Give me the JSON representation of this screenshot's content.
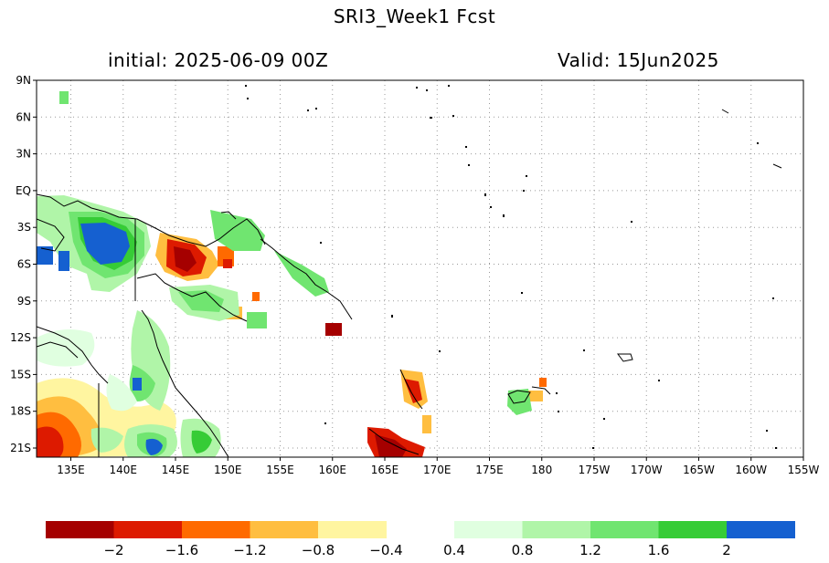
{
  "title": "SRI3_Week1   Fcst",
  "initial": "initial: 2025-06-09   00Z",
  "valid": "Valid: 15Jun2025",
  "lat_labels": [
    "9N",
    "6N",
    "3N",
    "EQ",
    "3S",
    "6S",
    "9S",
    "12S",
    "15S",
    "18S",
    "21S"
  ],
  "lon_labels": [
    "135E",
    "140E",
    "145E",
    "150E",
    "155E",
    "160E",
    "165E",
    "170E",
    "175E",
    "180",
    "175W",
    "170W",
    "165W",
    "160W",
    "155W"
  ],
  "colorbar": {
    "negative_colors": [
      "#a50000",
      "#dd1a00",
      "#ff6a00",
      "#ffbe40",
      "#fff5a0"
    ],
    "positive_colors": [
      "#e0ffe0",
      "#b0f5a8",
      "#70e570",
      "#36cc36",
      "#1560d0"
    ],
    "labels": [
      "−2",
      "−1.6",
      "−1.2",
      "−0.8",
      "−0.4",
      "0.4",
      "0.8",
      "1.2",
      "1.6",
      "2"
    ]
  }
}
